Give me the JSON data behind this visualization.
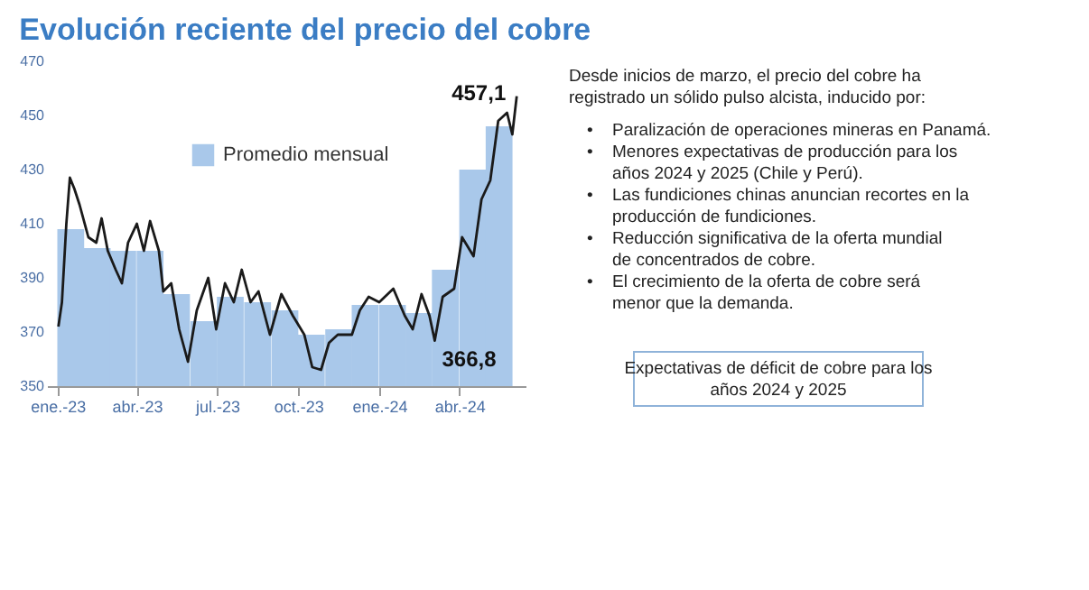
{
  "chart_data": {
    "type": "line",
    "title": "Evolución reciente del precio del cobre",
    "xlim": [
      "2022-12-20",
      "2024-06-15"
    ],
    "xticks": [
      {
        "value": "2023-01-01",
        "label": "ene.-23"
      },
      {
        "value": "2023-04-01",
        "label": "abr.-23"
      },
      {
        "value": "2023-07-01",
        "label": "jul.-23"
      },
      {
        "value": "2023-10-01",
        "label": "oct.-23"
      },
      {
        "value": "2024-01-01",
        "label": "ene.-24"
      },
      {
        "value": "2024-04-01",
        "label": "abr.-24"
      }
    ],
    "ylim": [
      350,
      470
    ],
    "yticks": [
      350,
      370,
      390,
      410,
      430,
      450,
      470
    ],
    "legend": "top",
    "grid": false,
    "series": [
      {
        "name": "Promedio mensual",
        "type": "bar",
        "color": "#a9c8ea",
        "x": [
          "2023-01-16",
          "2023-02-15",
          "2023-03-16",
          "2023-04-16",
          "2023-05-16",
          "2023-06-16",
          "2023-07-16",
          "2023-08-16",
          "2023-09-16",
          "2023-10-16",
          "2023-11-16",
          "2023-12-16",
          "2024-01-16",
          "2024-02-15",
          "2024-03-16",
          "2024-04-16",
          "2024-05-16"
        ],
        "values": [
          408,
          401,
          400,
          400,
          384,
          374,
          383,
          381,
          378,
          369,
          371,
          380,
          380,
          377,
          393,
          430,
          446
        ]
      },
      {
        "color": "#1a1a1a",
        "x": [
          "2023-01-02",
          "2023-01-06",
          "2023-01-11",
          "2023-01-15",
          "2023-01-20",
          "2023-01-26",
          "2023-02-05",
          "2023-02-14",
          "2023-02-20",
          "2023-02-27",
          "2023-03-08",
          "2023-03-15",
          "2023-03-22",
          "2023-04-01",
          "2023-04-09",
          "2023-04-16",
          "2023-04-26",
          "2023-05-01",
          "2023-05-10",
          "2023-05-19",
          "2023-05-29",
          "2023-06-08",
          "2023-06-21",
          "2023-06-30",
          "2023-07-10",
          "2023-07-20",
          "2023-07-29",
          "2023-08-08",
          "2023-08-17",
          "2023-08-30",
          "2023-09-12",
          "2023-09-25",
          "2023-10-08",
          "2023-10-17",
          "2023-10-27",
          "2023-11-05",
          "2023-11-15",
          "2023-12-01",
          "2023-12-10",
          "2023-12-20",
          "2024-01-01",
          "2024-01-17",
          "2024-01-30",
          "2024-02-08",
          "2024-02-18",
          "2024-02-27",
          "2024-03-04",
          "2024-03-13",
          "2024-03-26",
          "2024-04-04",
          "2024-04-17",
          "2024-04-26",
          "2024-05-06",
          "2024-05-15",
          "2024-05-25",
          "2024-05-31",
          "2024-06-05"
        ],
        "values": [
          372,
          381,
          410,
          427,
          423,
          417,
          405,
          403,
          412,
          400,
          393,
          388,
          403,
          410,
          400,
          411,
          400,
          385,
          388,
          371,
          359,
          378,
          390,
          371,
          388,
          381,
          393,
          381,
          385,
          369,
          384,
          376,
          369,
          357,
          356,
          366,
          369,
          369,
          378,
          383,
          381,
          386,
          376,
          371,
          384,
          376,
          366.8,
          383,
          386,
          405,
          398,
          419,
          426,
          448,
          451,
          443,
          457.1
        ]
      }
    ],
    "annotations": [
      {
        "text": "457,1",
        "x": "2024-06-05",
        "y": 457.1
      },
      {
        "text": "366,8",
        "x": "2024-03-04",
        "y": 366.8
      },
      "Desde inicios de marzo, el precio del cobre ha registrado un sólido pulso alcista, inducido por:",
      "• Paralización de operaciones mineras en Panamá.",
      "• Menores expectativas de producción para los años 2024 y 2025 (Chile y Perú).",
      "• Las fundiciones chinas anuncian recortes en la producción de fundiciones.",
      "• Reducción significativa de la oferta mundial de concentrados de cobre.",
      "• El crecimiento de la oferta de cobre será menor que la demanda.",
      "Expectativas de déficit de cobre para los años 2024 y 2025"
    ]
  }
}
